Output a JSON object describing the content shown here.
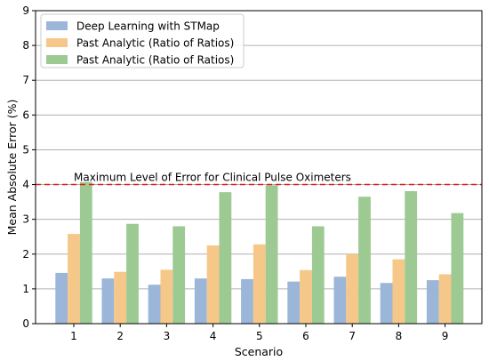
{
  "chart_data": {
    "type": "bar",
    "xlabel": "Scenario",
    "ylabel": "Mean Absolute Error (%)",
    "ylim": [
      0,
      9
    ],
    "yticks": [
      0,
      1,
      2,
      3,
      4,
      5,
      6,
      7,
      8,
      9
    ],
    "categories": [
      "1",
      "2",
      "3",
      "4",
      "5",
      "6",
      "7",
      "8",
      "9"
    ],
    "grid": "horizontal",
    "legend_position": "top-left",
    "series": [
      {
        "name": "Deep Learning with STMap",
        "color": "#9bb6d8",
        "values": [
          1.46,
          1.3,
          1.12,
          1.3,
          1.28,
          1.21,
          1.35,
          1.17,
          1.25
        ]
      },
      {
        "name": "Past Analytic (Ratio of Ratios)",
        "color": "#f5c88a",
        "values": [
          2.58,
          1.49,
          1.55,
          2.25,
          2.28,
          1.54,
          2.0,
          1.85,
          1.42
        ]
      },
      {
        "name": "Past Analytic (Ratio of Ratios)",
        "color": "#9dca93",
        "values": [
          4.07,
          2.87,
          2.8,
          3.78,
          3.98,
          2.8,
          3.65,
          3.81,
          3.18
        ]
      }
    ],
    "reference_line": {
      "value": 4.0,
      "label": "Maximum Level of Error for Clinical Pulse Oximeters",
      "color": "#e0201b"
    }
  }
}
